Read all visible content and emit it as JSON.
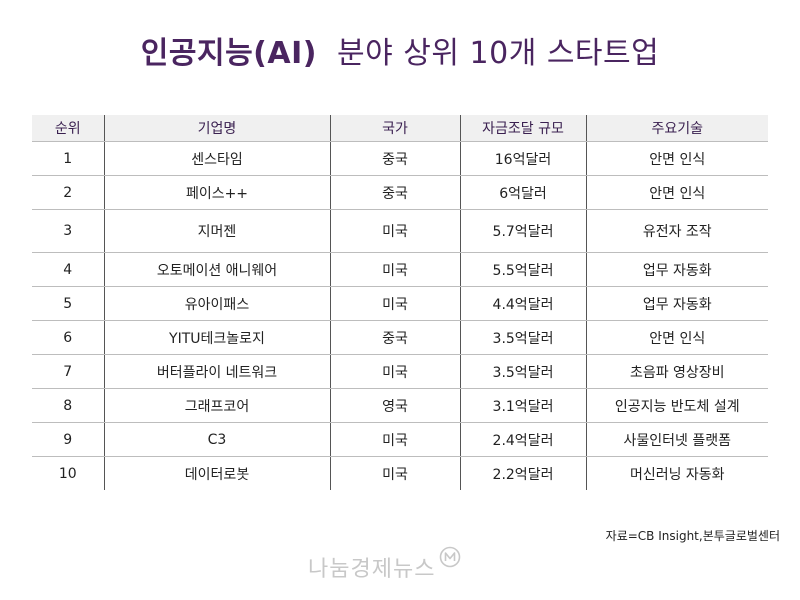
{
  "title": {
    "bold": "인공지능(AI)",
    "rest": "분야 상위 10개 스타트업"
  },
  "table": {
    "headers": [
      "순위",
      "기업명",
      "국가",
      "자금조달 규모",
      "주요기술"
    ],
    "rows": [
      [
        "1",
        "센스타임",
        "중국",
        "16억달러",
        "안면 인식"
      ],
      [
        "2",
        "페이스++",
        "중국",
        "6억달러",
        "안면 인식"
      ],
      [
        "3",
        "지머젠",
        "미국",
        "5.7억달러",
        "유전자 조작"
      ],
      [
        "4",
        "오토메이션 애니웨어",
        "미국",
        "5.5억달러",
        "업무 자동화"
      ],
      [
        "5",
        "유아이패스",
        "미국",
        "4.4억달러",
        "업무 자동화"
      ],
      [
        "6",
        "YITU테크놀로지",
        "중국",
        "3.5억달러",
        "안면 인식"
      ],
      [
        "7",
        "버터플라이 네트워크",
        "미국",
        "3.5억달러",
        "초음파 영상장비"
      ],
      [
        "8",
        "그래프코어",
        "영국",
        "3.1억달러",
        "인공지능 반도체 설계"
      ],
      [
        "9",
        "C3",
        "미국",
        "2.4억달러",
        "사물인터넷 플랫폼"
      ],
      [
        "10",
        "데이터로봇",
        "미국",
        "2.2억달러",
        "머신러닝 자동화"
      ]
    ]
  },
  "source": "자료=CB Insight,본투글로벌센터",
  "logo": {
    "text": "나눔경제뉴스",
    "icon": "n-badge-icon",
    "color": "#c8c8c8"
  },
  "colors": {
    "title": "#4a2560",
    "header_bg": "#f0f0f0"
  }
}
